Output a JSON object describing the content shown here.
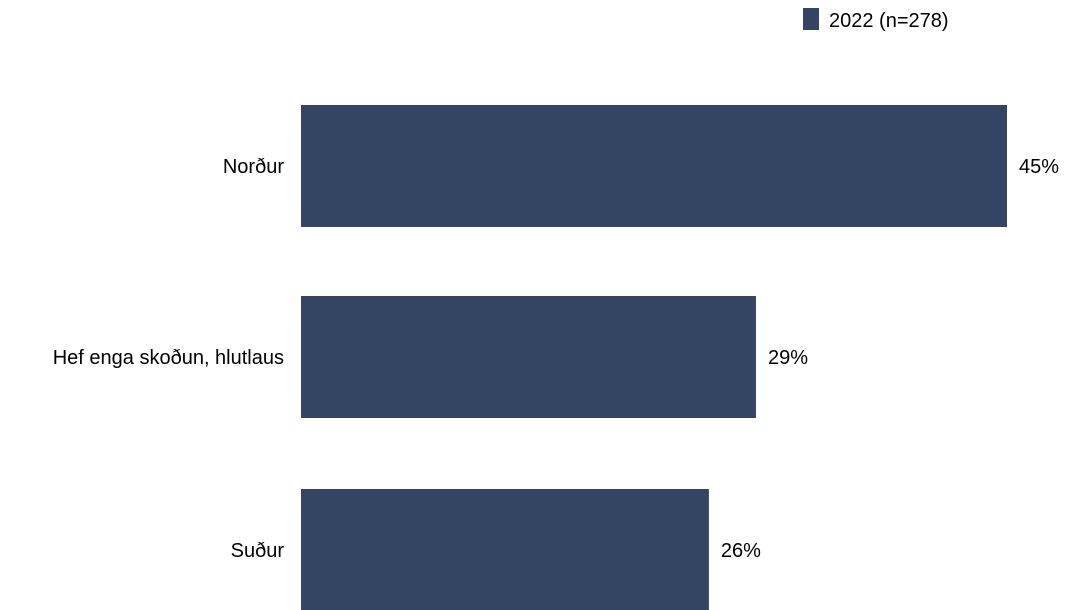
{
  "chart_data": {
    "type": "bar",
    "orientation": "horizontal",
    "categories": [
      "Norður",
      "Hef enga skoðun, hlutlaus",
      "Suður"
    ],
    "series": [
      {
        "name": "2022 (n=278)",
        "values": [
          45,
          29,
          26
        ],
        "value_labels": [
          "45%",
          "29%",
          "26%"
        ],
        "color": "#344563"
      }
    ],
    "xlim": [
      0,
      50
    ],
    "grid": false,
    "legend_position": "top-right"
  }
}
